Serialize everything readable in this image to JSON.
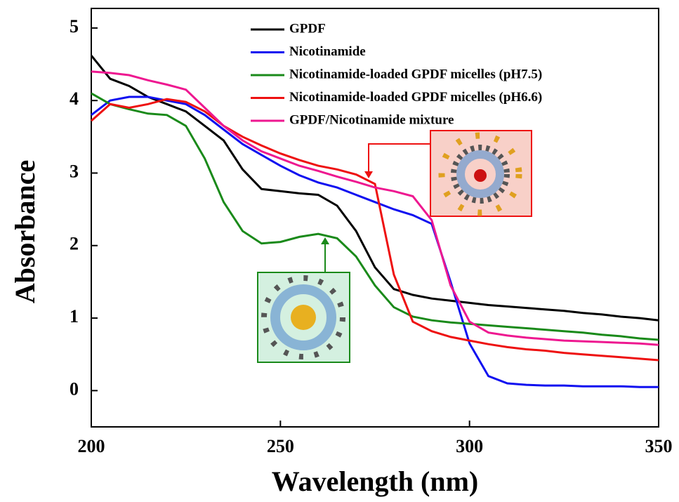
{
  "chart_data": {
    "type": "line",
    "x_label": "Wavelength (nm)",
    "y_label": "Absorbance",
    "x": [
      200,
      205,
      210,
      215,
      220,
      225,
      230,
      235,
      240,
      245,
      250,
      255,
      260,
      265,
      270,
      275,
      280,
      285,
      290,
      295,
      300,
      305,
      310,
      315,
      320,
      325,
      330,
      335,
      340,
      345,
      350
    ],
    "series": [
      {
        "name": "GPDF",
        "color": "#000000",
        "values": [
          4.62,
          4.3,
          4.2,
          4.05,
          3.95,
          3.85,
          3.65,
          3.45,
          3.05,
          2.78,
          2.75,
          2.72,
          2.7,
          2.55,
          2.2,
          1.7,
          1.4,
          1.32,
          1.27,
          1.24,
          1.21,
          1.18,
          1.16,
          1.14,
          1.12,
          1.1,
          1.07,
          1.05,
          1.02,
          1.0,
          0.97
        ]
      },
      {
        "name": "Nicotinamide",
        "color": "#1010f0",
        "values": [
          3.8,
          4.0,
          4.05,
          4.05,
          4.0,
          3.95,
          3.8,
          3.6,
          3.4,
          3.25,
          3.1,
          2.97,
          2.87,
          2.8,
          2.7,
          2.6,
          2.5,
          2.42,
          2.3,
          1.5,
          0.65,
          0.2,
          0.1,
          0.08,
          0.07,
          0.07,
          0.06,
          0.06,
          0.06,
          0.05,
          0.05
        ]
      },
      {
        "name": "Nicotinamide-loaded GPDF micelles (pH7.5)",
        "color": "#1a8a1a",
        "values": [
          4.1,
          3.95,
          3.88,
          3.82,
          3.8,
          3.65,
          3.2,
          2.6,
          2.2,
          2.03,
          2.05,
          2.12,
          2.16,
          2.1,
          1.85,
          1.45,
          1.15,
          1.02,
          0.97,
          0.94,
          0.92,
          0.9,
          0.88,
          0.86,
          0.84,
          0.82,
          0.8,
          0.77,
          0.75,
          0.72,
          0.7
        ]
      },
      {
        "name": "Nicotinamide-loaded GPDF micelles (pH6.6)",
        "color": "#ee1111",
        "values": [
          3.72,
          3.95,
          3.9,
          3.95,
          4.02,
          3.98,
          3.85,
          3.65,
          3.5,
          3.38,
          3.27,
          3.18,
          3.1,
          3.05,
          2.98,
          2.85,
          1.6,
          0.95,
          0.82,
          0.74,
          0.69,
          0.64,
          0.6,
          0.57,
          0.55,
          0.52,
          0.5,
          0.48,
          0.46,
          0.44,
          0.42
        ]
      },
      {
        "name": "GPDF/Nicotinamide mixture",
        "color": "#ee1890",
        "values": [
          4.4,
          4.38,
          4.35,
          4.28,
          4.22,
          4.15,
          3.9,
          3.65,
          3.45,
          3.3,
          3.2,
          3.1,
          3.03,
          2.95,
          2.88,
          2.8,
          2.75,
          2.68,
          2.35,
          1.45,
          0.95,
          0.8,
          0.76,
          0.73,
          0.71,
          0.69,
          0.68,
          0.67,
          0.66,
          0.65,
          0.63
        ]
      }
    ],
    "xlim": [
      200,
      350
    ],
    "xticks": [
      200,
      250,
      300,
      350
    ],
    "ylim": [
      -0.5,
      5.27
    ],
    "yticks": [
      0,
      1,
      2,
      3,
      4,
      5
    ],
    "legend": "upper center"
  }
}
